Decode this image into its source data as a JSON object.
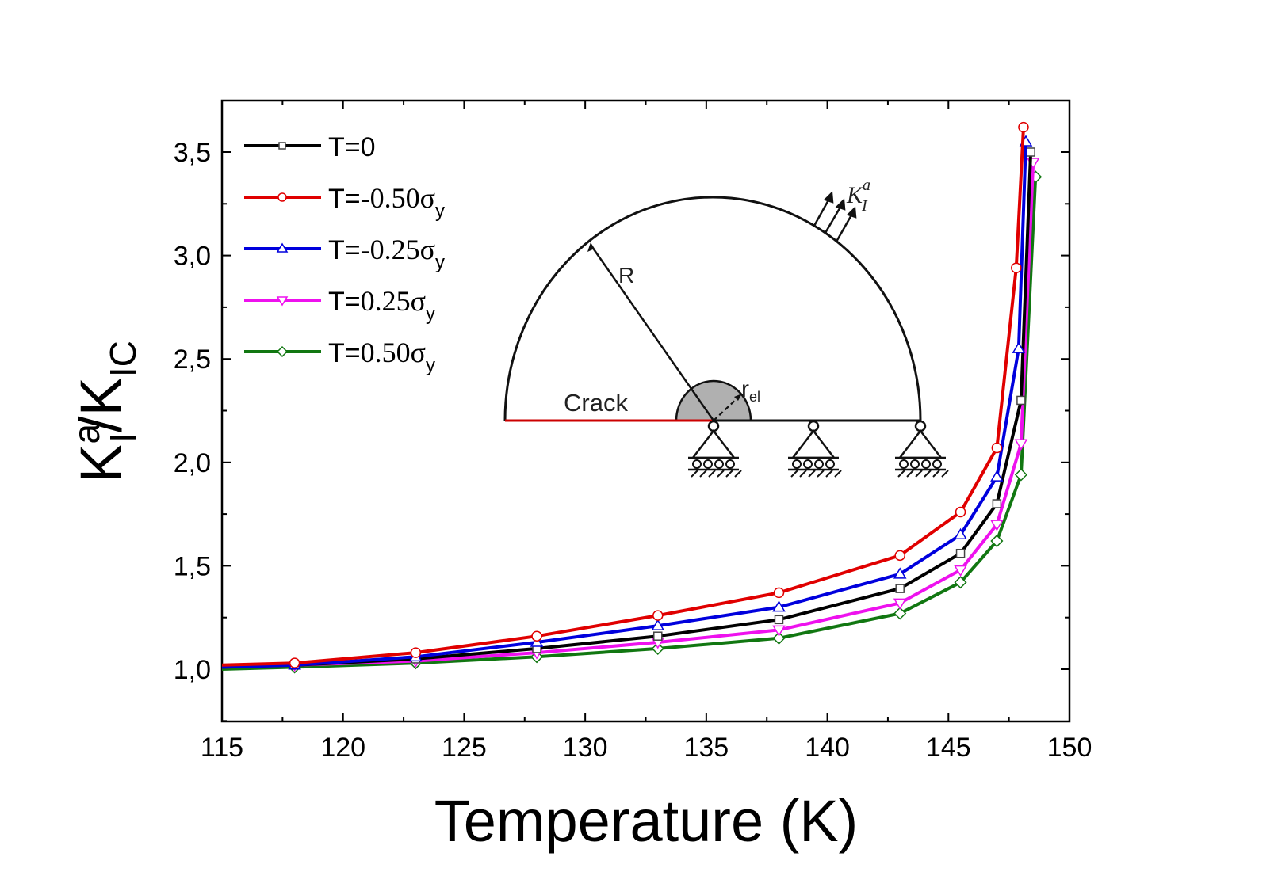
{
  "chart_data": {
    "type": "line",
    "title": "",
    "xlabel": "Temperature (K)",
    "ylabel": {
      "main": "K",
      "sup": "a",
      "sub": "I",
      "slash": "/K",
      "sub2": "IC"
    },
    "xlim": [
      115,
      150
    ],
    "ylim": [
      0.75,
      3.75
    ],
    "xticks": [
      115,
      120,
      125,
      130,
      135,
      140,
      145,
      150
    ],
    "xtick_labels": [
      "115",
      "120",
      "125",
      "130",
      "135",
      "140",
      "145",
      "150"
    ],
    "yticks": [
      1.0,
      1.5,
      2.0,
      2.5,
      3.0,
      3.5
    ],
    "ytick_labels": [
      "1,0",
      "1,5",
      "2,0",
      "2,5",
      "3,0",
      "3,5"
    ],
    "grid": false,
    "legend_position": "top-left",
    "series": [
      {
        "name": "T=0",
        "label_prefix": "T=0",
        "label_sigma": false,
        "color": "#000000",
        "marker": "square",
        "x": [
          115,
          118,
          123,
          128,
          133,
          138,
          143,
          145.5,
          147,
          148,
          148.4
        ],
        "y": [
          1.01,
          1.02,
          1.05,
          1.1,
          1.16,
          1.24,
          1.39,
          1.56,
          1.8,
          2.3,
          3.5
        ]
      },
      {
        "name": "T=-0.50σy",
        "label_prefix": "T=-0.50",
        "label_sigma": true,
        "color": "#e00000",
        "marker": "circle",
        "x": [
          115,
          118,
          123,
          128,
          133,
          138,
          143,
          145.5,
          147,
          147.8,
          148.1
        ],
        "y": [
          1.02,
          1.03,
          1.08,
          1.16,
          1.26,
          1.37,
          1.55,
          1.76,
          2.07,
          2.94,
          3.62
        ]
      },
      {
        "name": "T=-0.25σy",
        "label_prefix": "T=-0.25",
        "label_sigma": true,
        "color": "#0000dd",
        "marker": "triangle-up",
        "x": [
          115,
          118,
          123,
          128,
          133,
          138,
          143,
          145.5,
          147,
          147.9,
          148.2
        ],
        "y": [
          1.01,
          1.02,
          1.06,
          1.13,
          1.21,
          1.3,
          1.46,
          1.65,
          1.93,
          2.55,
          3.55
        ]
      },
      {
        "name": "T=0.25σy",
        "label_prefix": "T=0.25",
        "label_sigma": true,
        "color": "#ee11ee",
        "marker": "triangle-down",
        "x": [
          115,
          118,
          123,
          128,
          133,
          138,
          143,
          145.5,
          147,
          148,
          148.5
        ],
        "y": [
          1.01,
          1.02,
          1.04,
          1.08,
          1.13,
          1.19,
          1.32,
          1.48,
          1.7,
          2.09,
          3.45
        ]
      },
      {
        "name": "T=0.50σy",
        "label_prefix": "T=0.50",
        "label_sigma": true,
        "color": "#117711",
        "marker": "diamond",
        "x": [
          115,
          118,
          123,
          128,
          133,
          138,
          143,
          145.5,
          147,
          148,
          148.6
        ],
        "y": [
          1.0,
          1.01,
          1.03,
          1.06,
          1.1,
          1.15,
          1.27,
          1.42,
          1.62,
          1.94,
          3.38
        ]
      }
    ],
    "inset": {
      "labels": {
        "radius": "R",
        "crack": "Crack",
        "r_el_main": "r",
        "r_el_sub": "el",
        "k_main": "K",
        "k_sup": "a",
        "k_sub": "I"
      },
      "crack_color": "#cc0000",
      "zone_color": "#b0b0b0"
    }
  }
}
